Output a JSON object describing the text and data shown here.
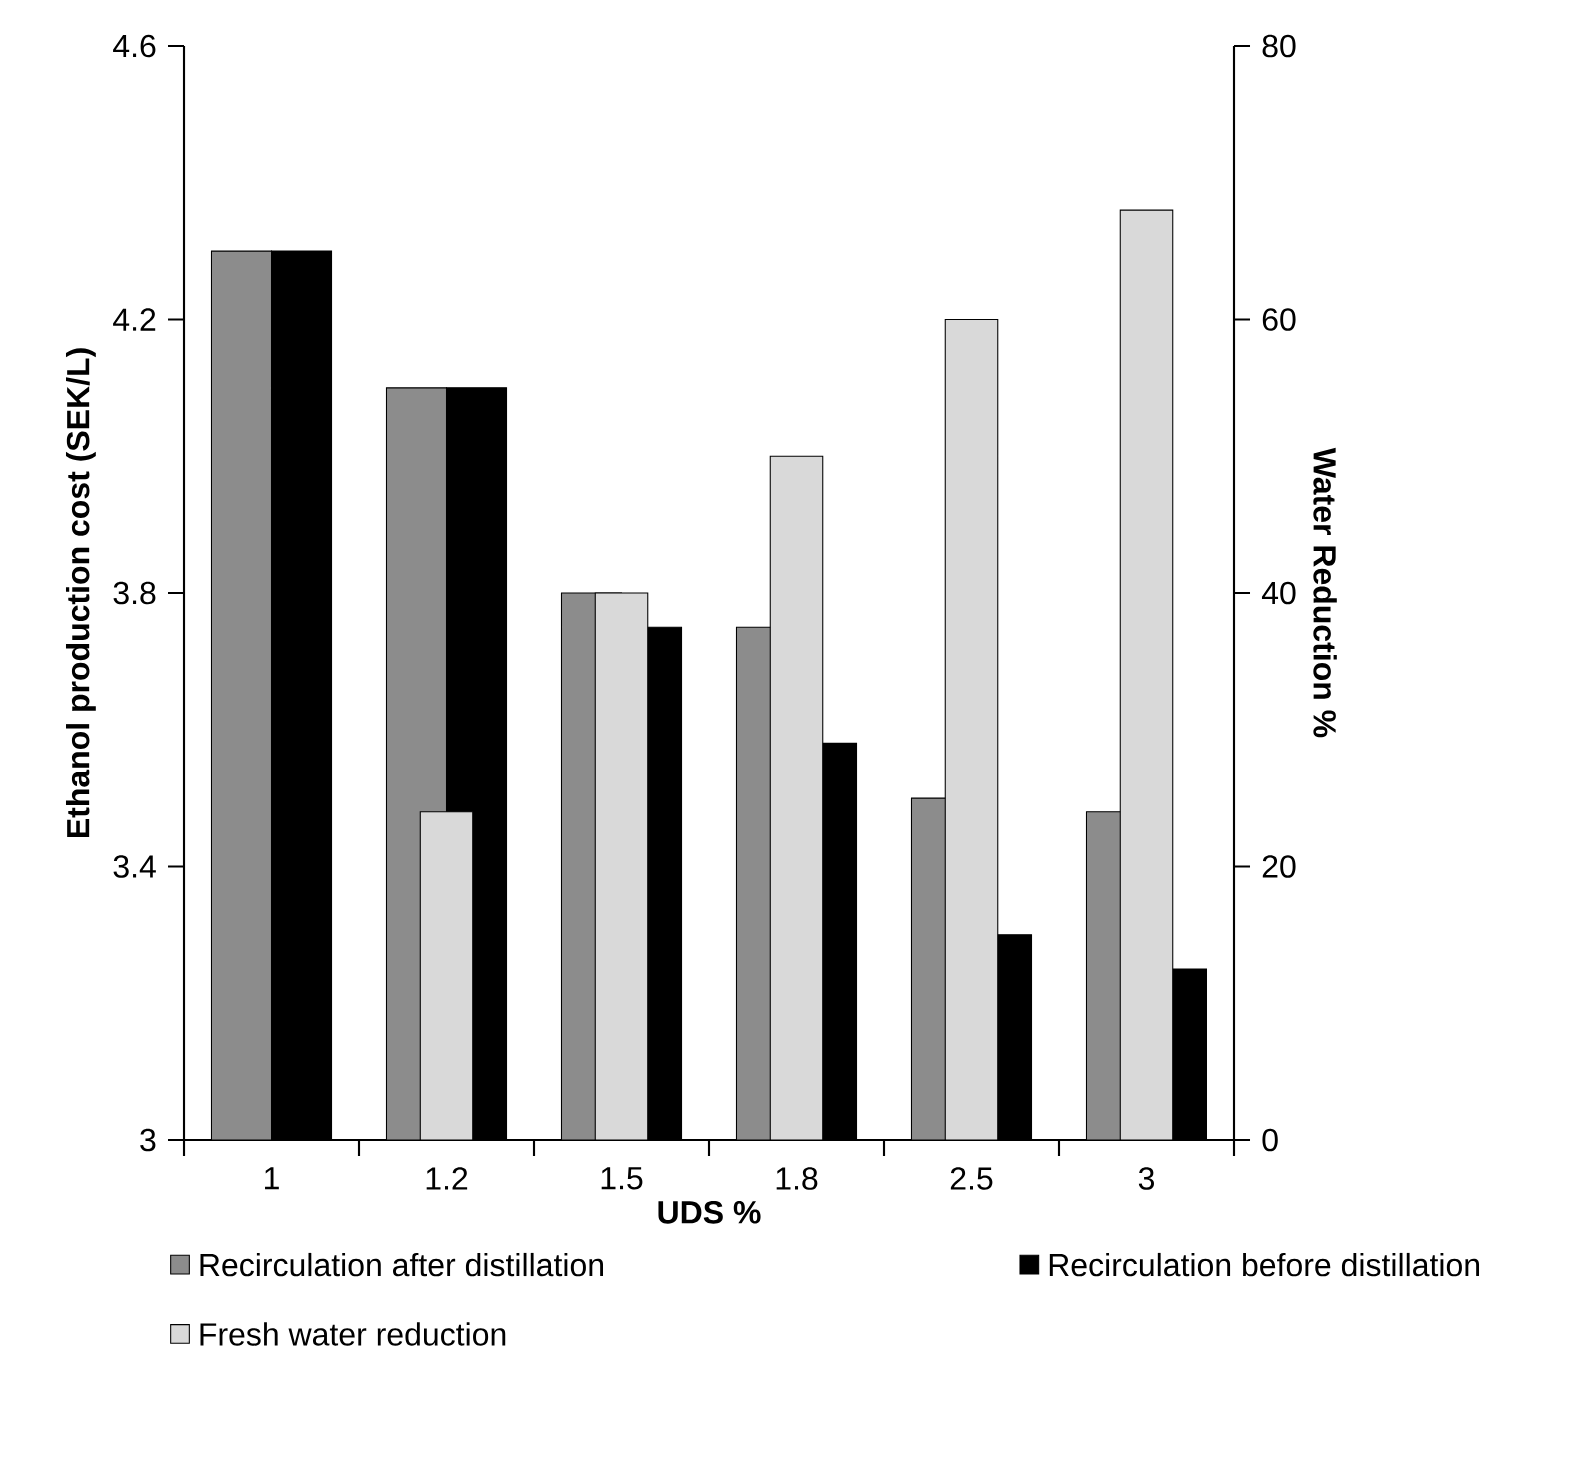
{
  "chart_data": {
    "type": "bar",
    "categories": [
      "1",
      "1.2",
      "1.5",
      "1.8",
      "2.5",
      "3"
    ],
    "xlabel": "UDS %",
    "ylabel": "Ethanol production cost (SEK/L)",
    "y2label": "Water Reduction %",
    "ylim": [
      3,
      4.6
    ],
    "yticks": [
      3,
      3.4,
      3.8,
      4.2,
      4.6
    ],
    "y2lim": [
      0,
      80
    ],
    "y2ticks": [
      0,
      20,
      40,
      60,
      80
    ],
    "legend": "bottom",
    "series": [
      {
        "name": "Recirculation after distillation",
        "color": "#8c8c8c",
        "values": [
          4.3,
          4.1,
          3.8,
          3.75,
          3.5,
          3.48
        ]
      },
      {
        "name": "Recirculation before distillation",
        "color": "#000000",
        "values": [
          4.3,
          4.1,
          3.75,
          3.58,
          3.3,
          3.25
        ]
      },
      {
        "name": "Fresh water reduction",
        "color": "#d9d9d9",
        "axis": "y2",
        "values": [
          null,
          24,
          40,
          50,
          60,
          68
        ]
      }
    ]
  }
}
